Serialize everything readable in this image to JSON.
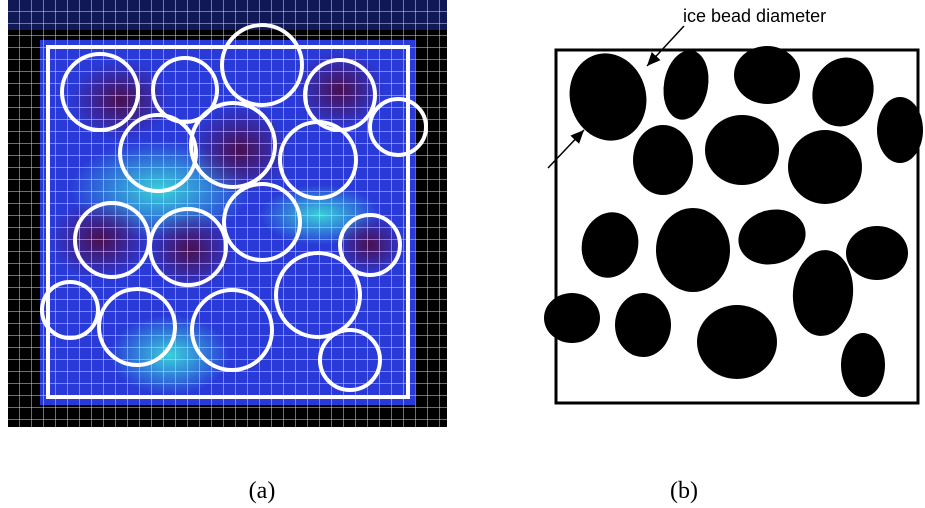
{
  "panels": [
    {
      "label": "(a)"
    },
    {
      "label": "(b)",
      "annotation": "ice bead diameter"
    }
  ]
}
